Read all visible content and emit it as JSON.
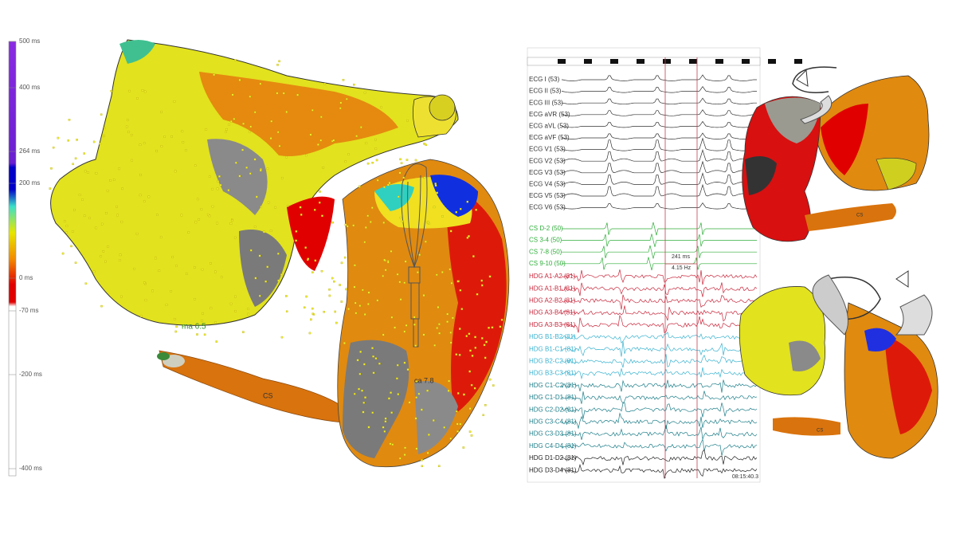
{
  "colorbar": {
    "labels": [
      "500 ms",
      "400 ms",
      "264 ms",
      "200 ms",
      "0 ms",
      "-70 ms",
      "-200 ms",
      "-400 ms"
    ]
  },
  "left_map": {
    "labels": [
      "ma 6.5",
      "ca 7.8",
      "CS"
    ]
  },
  "right_map": {
    "labels": [
      "CS",
      "CS"
    ]
  },
  "ecg": {
    "leads": [
      {
        "label": "ECG I (53)",
        "group": "ecg"
      },
      {
        "label": "ECG II (53)",
        "group": "ecg"
      },
      {
        "label": "ECG III (53)",
        "group": "ecg"
      },
      {
        "label": "ECG aVR (53)",
        "group": "ecg"
      },
      {
        "label": "ECG aVL (53)",
        "group": "ecg"
      },
      {
        "label": "ECG aVF (53)",
        "group": "ecg"
      },
      {
        "label": "ECG V1 (53)",
        "group": "ecg"
      },
      {
        "label": "ECG V2 (53)",
        "group": "ecg"
      },
      {
        "label": "ECG V3 (53)",
        "group": "ecg"
      },
      {
        "label": "ECG V4 (53)",
        "group": "ecg"
      },
      {
        "label": "ECG V5 (53)",
        "group": "ecg"
      },
      {
        "label": "ECG V6 (53)",
        "group": "ecg"
      },
      {
        "label": "CS D-2 (50)",
        "group": "cs"
      },
      {
        "label": "CS 3-4 (50)",
        "group": "cs"
      },
      {
        "label": "CS 7-8 (50)",
        "group": "cs"
      },
      {
        "label": "CS 9-10 (50)",
        "group": "cs"
      },
      {
        "label": "HDG A1-A2 (81)",
        "group": "hdg-a"
      },
      {
        "label": "HDG A1-B1 (81)",
        "group": "hdg-a"
      },
      {
        "label": "HDG A2-B2 (81)",
        "group": "hdg-a"
      },
      {
        "label": "HDG A3-B4 (81)",
        "group": "hdg-a"
      },
      {
        "label": "HDG A3-B3 (81)",
        "group": "hdg-a"
      },
      {
        "label": "HDG B1-B2 (81)",
        "group": "hdg-b"
      },
      {
        "label": "HDG B1-C1 (81)",
        "group": "hdg-b"
      },
      {
        "label": "HDG B2-C2 (81)",
        "group": "hdg-b"
      },
      {
        "label": "HDG B3-C3 (81)",
        "group": "hdg-b"
      },
      {
        "label": "HDG C1-C2 (81)",
        "group": "hdg-c"
      },
      {
        "label": "HDG C1-D1 (81)",
        "group": "hdg-c"
      },
      {
        "label": "HDG C2-D2 (81)",
        "group": "hdg-c"
      },
      {
        "label": "HDG C3-C4 (81)",
        "group": "hdg-c"
      },
      {
        "label": "HDG C3-D3 (81)",
        "group": "hdg-c"
      },
      {
        "label": "HDG C4-D4 (81)",
        "group": "hdg-c"
      },
      {
        "label": "HDG D1-D2 (81)",
        "group": "hdg-d"
      },
      {
        "label": "HDG D3-D4 (81)",
        "group": "hdg-d"
      }
    ],
    "measure": {
      "interval": "241 ms",
      "rate": "4.15 Hz"
    },
    "time": "08:15:40.3"
  }
}
